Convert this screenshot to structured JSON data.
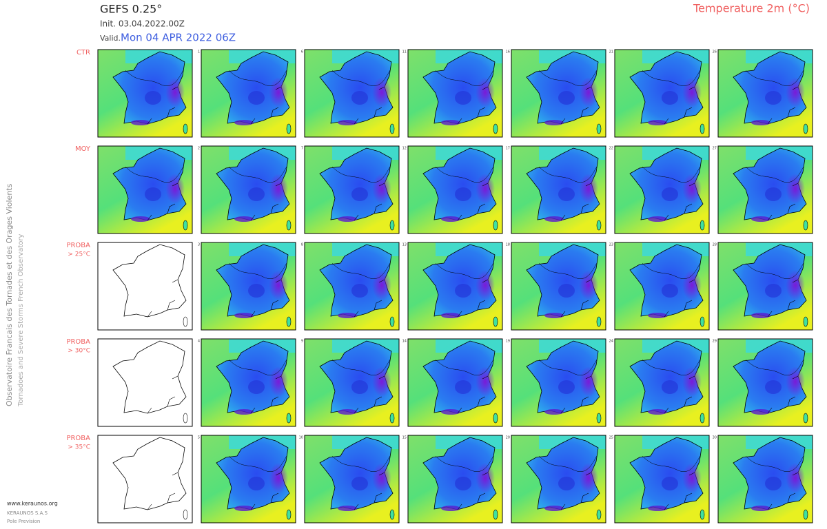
{
  "header": {
    "model": "GEFS 0.25°",
    "init": "Init.  03.04.2022.00Z",
    "valid_label": "Valid.",
    "valid_date": "Mon 04 APR 2022 06Z",
    "parameter": "Temperature 2m (°C)"
  },
  "rows": [
    {
      "label": "CTR",
      "members": [
        1,
        6,
        11,
        16,
        21,
        26
      ]
    },
    {
      "label": "MOY",
      "members": [
        2,
        7,
        12,
        17,
        22,
        27
      ]
    },
    {
      "label": "PROBA",
      "sublabel": "> 25°C",
      "members": [
        3,
        8,
        13,
        18,
        23,
        28
      ]
    },
    {
      "label": "PROBA",
      "sublabel": "> 30°C",
      "members": [
        4,
        9,
        14,
        19,
        24,
        29
      ]
    },
    {
      "label": "PROBA",
      "sublabel": "> 35°C",
      "members": [
        5,
        10,
        15,
        20,
        25,
        30
      ]
    }
  ],
  "side": {
    "org_fr": "Observatoire Francais des Tornades et des Orages Violents",
    "org_en": "Tornadoes and Severe Storms French Observatory",
    "url": "www.keraunos.org",
    "company": "KERAUNOS S.A.S",
    "dept": "Pole Prevision"
  }
}
